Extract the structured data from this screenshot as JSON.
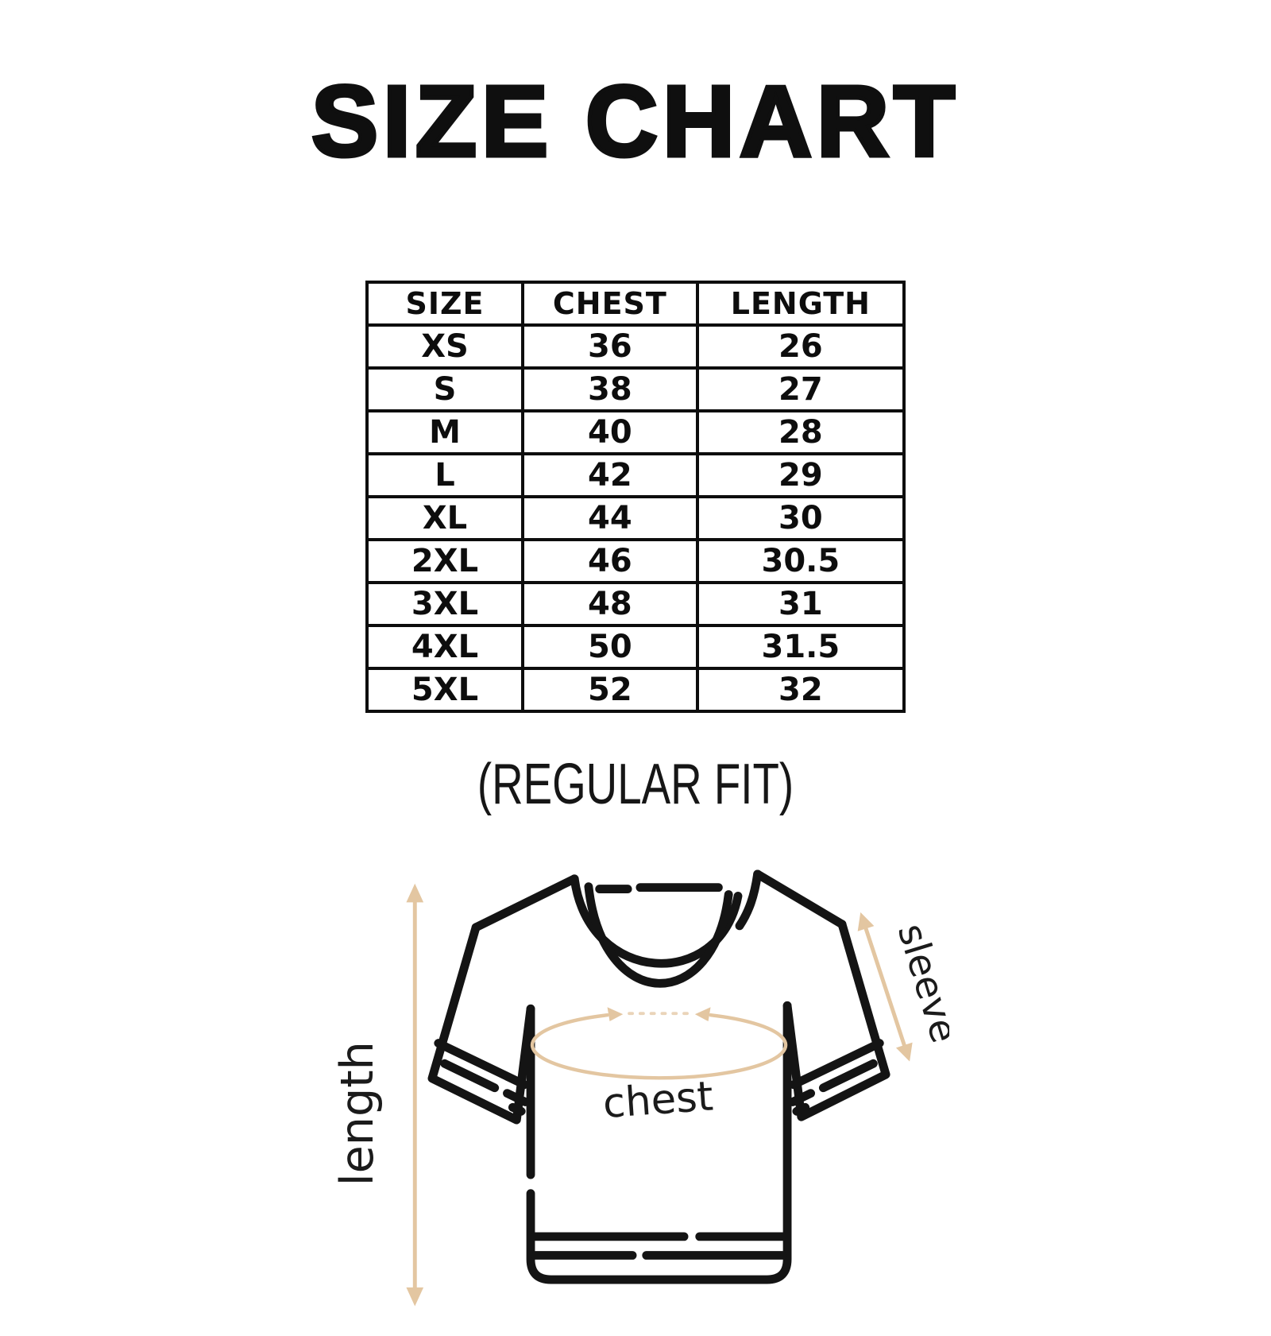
{
  "title": "SIZE CHART",
  "fit_label": "(REGULAR FIT)",
  "table": {
    "headers": [
      "SIZE",
      "CHEST",
      "LENGTH"
    ],
    "rows": [
      [
        "XS",
        "36",
        "26"
      ],
      [
        "S",
        "38",
        "27"
      ],
      [
        "M",
        "40",
        "28"
      ],
      [
        "L",
        "42",
        "29"
      ],
      [
        "XL",
        "44",
        "30"
      ],
      [
        "2XL",
        "46",
        "30.5"
      ],
      [
        "3XL",
        "48",
        "31"
      ],
      [
        "4XL",
        "50",
        "31.5"
      ],
      [
        "5XL",
        "52",
        "32"
      ]
    ]
  },
  "diagram": {
    "length_label": "length",
    "chest_label": "chest",
    "sleeve_label": "sleeve",
    "arrow_color": "#e3c6a1",
    "outline_color": "#141414"
  },
  "chart_data": {
    "type": "table",
    "title": "SIZE CHART",
    "columns": [
      "SIZE",
      "CHEST",
      "LENGTH"
    ],
    "rows": [
      [
        "XS",
        36,
        26
      ],
      [
        "S",
        38,
        27
      ],
      [
        "M",
        40,
        28
      ],
      [
        "L",
        42,
        29
      ],
      [
        "XL",
        44,
        30
      ],
      [
        "2XL",
        46,
        30.5
      ],
      [
        "3XL",
        48,
        31
      ],
      [
        "4XL",
        50,
        31.5
      ],
      [
        "5XL",
        52,
        32
      ]
    ],
    "fit": "REGULAR FIT",
    "measurement_annotations": [
      "length",
      "chest",
      "sleeve"
    ]
  }
}
